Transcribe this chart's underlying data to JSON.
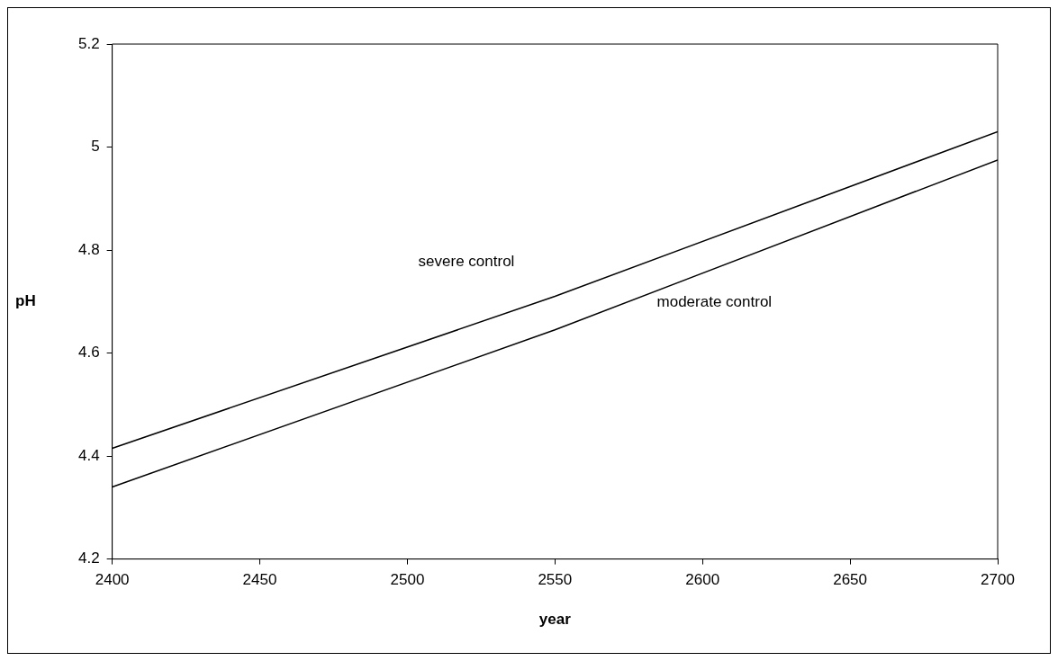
{
  "chart_data": {
    "type": "line",
    "xlabel": "year",
    "ylabel": "pH",
    "x": [
      2400,
      2550,
      2700
    ],
    "series": [
      {
        "name": "severe control",
        "color": "#000000",
        "values": [
          4.415,
          4.71,
          5.03
        ]
      },
      {
        "name": "moderate control",
        "color": "#000000",
        "values": [
          4.34,
          4.645,
          4.975
        ]
      }
    ],
    "xlim": [
      2400,
      2700
    ],
    "xticks": [
      2400,
      2450,
      2500,
      2550,
      2600,
      2650,
      2700
    ],
    "ylim": [
      4.2,
      5.2
    ],
    "yticks": [
      4.2,
      4.4,
      4.6,
      4.8,
      5,
      5.2
    ],
    "grid": false,
    "legend": false,
    "marker": "none",
    "line_style": "solid"
  }
}
